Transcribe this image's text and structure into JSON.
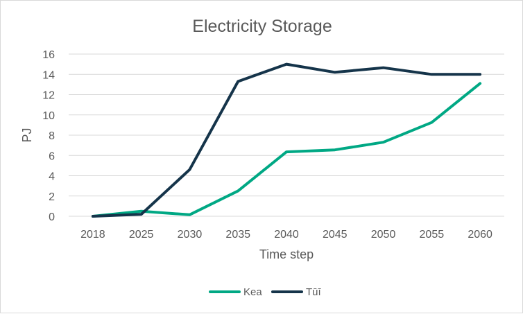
{
  "chart_data": {
    "type": "line",
    "title": "Electricity Storage",
    "xlabel": "Time step",
    "ylabel": "PJ",
    "categories": [
      "2018",
      "2025",
      "2030",
      "2035",
      "2040",
      "2045",
      "2050",
      "2055",
      "2060"
    ],
    "ylim": [
      0,
      16
    ],
    "yticks": [
      0,
      2,
      4,
      6,
      8,
      10,
      12,
      14,
      16
    ],
    "grid": true,
    "legend_position": "bottom",
    "series": [
      {
        "name": "Kea",
        "color": "#00a884",
        "values": [
          0.0,
          0.5,
          0.15,
          2.5,
          6.35,
          6.55,
          7.3,
          9.25,
          13.1
        ]
      },
      {
        "name": "Tūī",
        "color": "#15344a",
        "values": [
          0.0,
          0.2,
          4.6,
          13.3,
          15.0,
          14.2,
          14.65,
          14.0,
          14.0
        ]
      }
    ]
  }
}
